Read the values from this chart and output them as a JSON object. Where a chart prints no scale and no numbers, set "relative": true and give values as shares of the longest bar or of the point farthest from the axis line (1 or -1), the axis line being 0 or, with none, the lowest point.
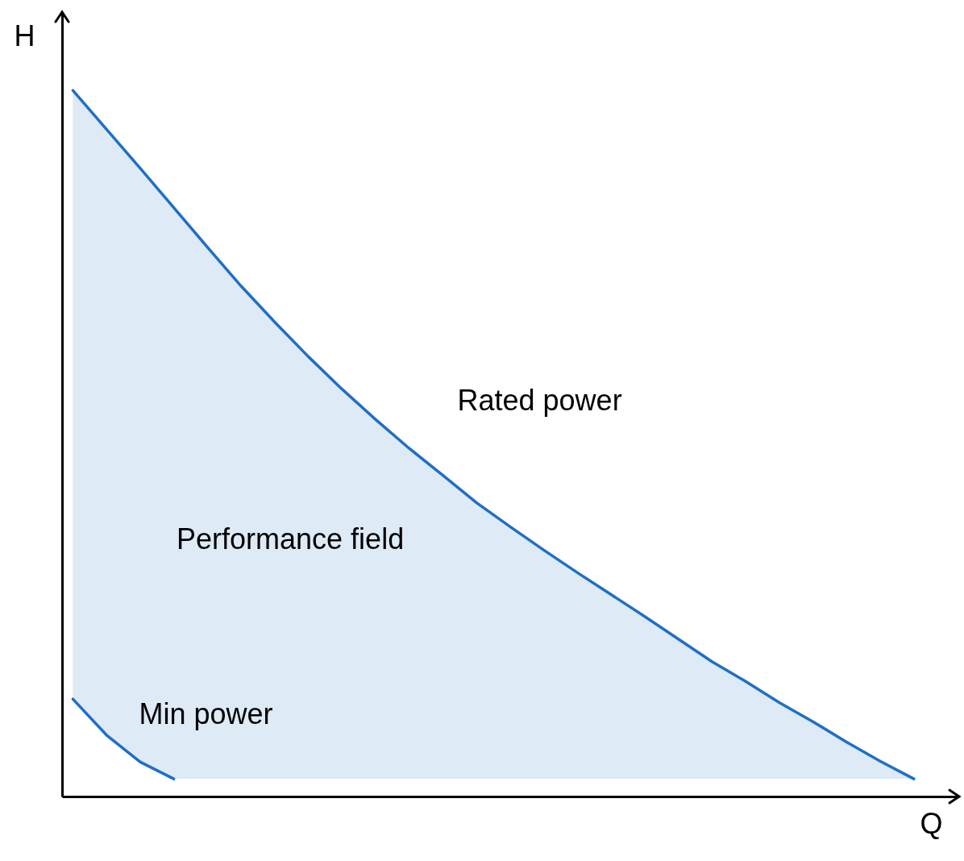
{
  "chart_data": {
    "type": "line",
    "relative": true,
    "xlabel": "Q",
    "ylabel": "H",
    "line_style": "solid",
    "categories": [
      null,
      null,
      null,
      null,
      null,
      null,
      null,
      null,
      null,
      null,
      null,
      null,
      null,
      null,
      null,
      null,
      null,
      null,
      null,
      null,
      null,
      null,
      null,
      null,
      null,
      null
    ],
    "annotations": [
      "Performance field"
    ],
    "series": [
      {
        "name": "Rated power",
        "color": "#1f6fc5",
        "values": [
          1.0,
          0.945,
          0.89,
          0.834,
          0.778,
          0.723,
          0.672,
          0.623,
          0.577,
          0.534,
          0.493,
          0.455,
          0.416,
          0.382,
          0.349,
          0.317,
          0.286,
          0.255,
          0.223,
          0.191,
          0.163,
          0.133,
          0.106,
          0.077,
          0.05,
          0.025
        ],
        "lower": [
          0.138,
          0.087,
          0.049,
          0.025,
          0.025,
          0.025,
          0.025,
          0.025,
          0.025,
          0.025,
          0.025,
          0.025,
          0.025,
          0.025,
          0.025,
          0.025,
          0.025,
          0.025,
          0.025,
          0.025,
          0.025,
          0.025,
          0.025,
          0.025,
          0.025,
          0.025
        ],
        "upper": [
          1.0,
          0.945,
          0.89,
          0.834,
          0.778,
          0.723,
          0.672,
          0.623,
          0.577,
          0.534,
          0.493,
          0.455,
          0.416,
          0.382,
          0.349,
          0.317,
          0.286,
          0.255,
          0.223,
          0.191,
          0.163,
          0.133,
          0.106,
          0.077,
          0.05,
          0.025
        ]
      },
      {
        "name": "Min power",
        "color": "#1f6fc5",
        "values": [
          0.138,
          0.087,
          0.049,
          0.025,
          null,
          null,
          null,
          null,
          null,
          null,
          null,
          null,
          null,
          null,
          null,
          null,
          null,
          null,
          null,
          null,
          null,
          null,
          null,
          null,
          null,
          null
        ]
      }
    ]
  }
}
